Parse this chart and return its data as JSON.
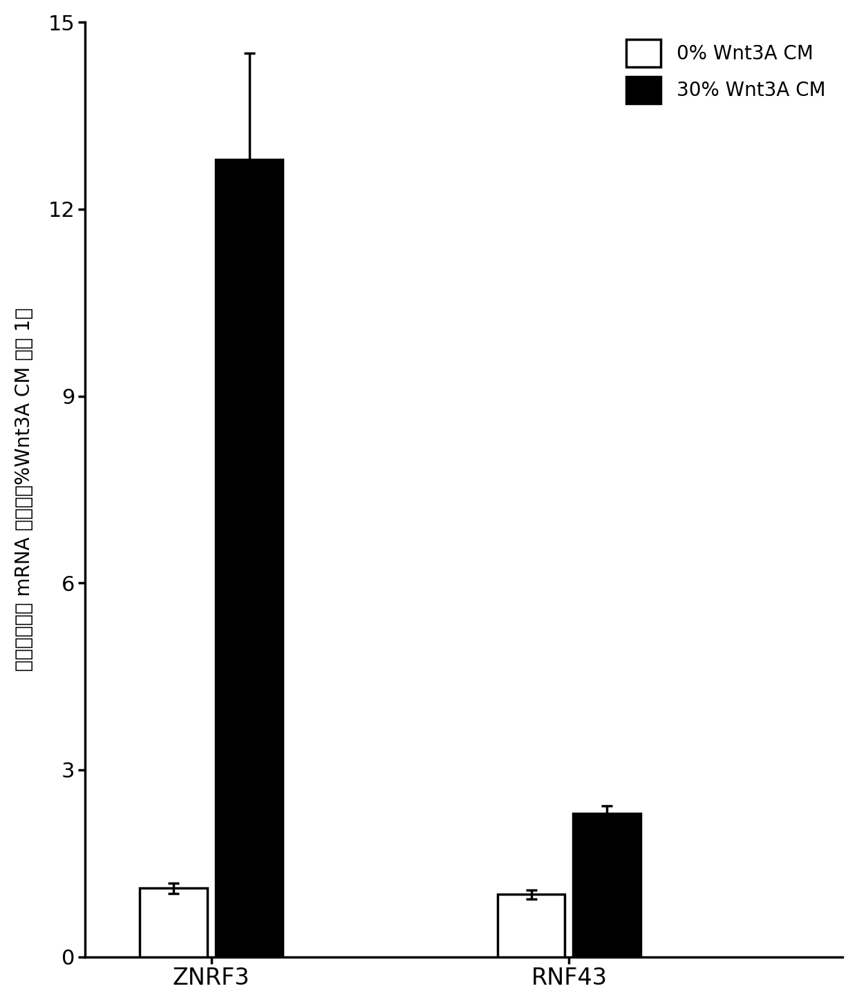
{
  "groups": [
    "ZNRF3",
    "RNF43"
  ],
  "bar_labels": [
    "0% Wnt3A CM",
    "30% Wnt3A CM"
  ],
  "bar_colors": [
    "#ffffff",
    "#000000"
  ],
  "bar_edgecolors": [
    "#000000",
    "#000000"
  ],
  "values": {
    "ZNRF3": [
      1.1,
      12.8
    ],
    "RNF43": [
      1.0,
      2.3
    ]
  },
  "errors": {
    "ZNRF3": [
      0.08,
      1.7
    ],
    "RNF43": [
      0.07,
      0.12
    ]
  },
  "ylim": [
    0,
    15
  ],
  "yticks": [
    0,
    3,
    6,
    9,
    12,
    15
  ],
  "ylabel": "归一化的相对 mRNA 水平（将%Wnt3A CM 当作 1）",
  "bar_width": 0.32,
  "background_color": "#ffffff",
  "linewidth": 2.5,
  "capsize": 6,
  "legend_fontsize": 20,
  "ylabel_fontsize": 20,
  "tick_fontsize": 22,
  "xlabel_fontsize": 24
}
